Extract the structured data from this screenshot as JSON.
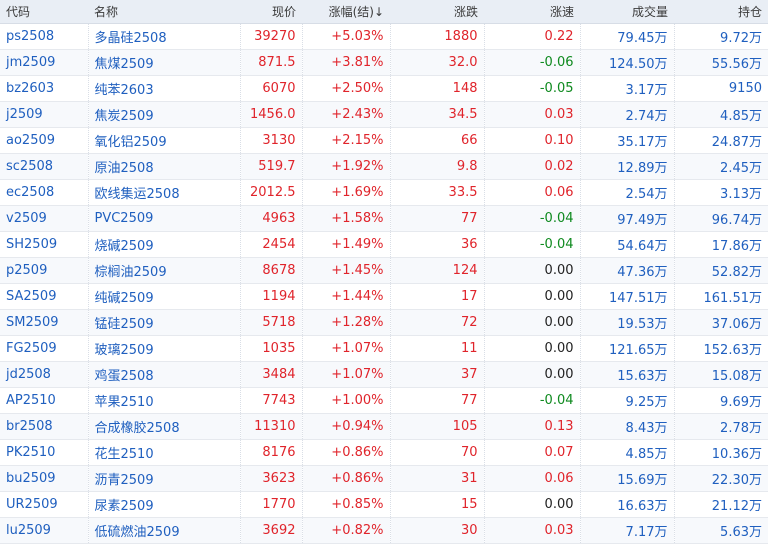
{
  "colors": {
    "up": "#e0242b",
    "down": "#0f8a1f",
    "flat": "#222222",
    "link": "#1f5fbf"
  },
  "header": [
    "代码",
    "名称",
    "现价",
    "涨幅(结)↓",
    "涨跌",
    "涨速",
    "成交量",
    "持仓"
  ],
  "rows": [
    {
      "code": "ps2508",
      "name": "多晶硅2508",
      "price": "39270",
      "pct": "+5.03%",
      "chg": "1880",
      "speed": "0.22",
      "speed_dir": "up",
      "vol": "79.45万",
      "oi": "9.72万"
    },
    {
      "code": "jm2509",
      "name": "焦煤2509",
      "price": "871.5",
      "pct": "+3.81%",
      "chg": "32.0",
      "speed": "-0.06",
      "speed_dir": "down",
      "vol": "124.50万",
      "oi": "55.56万"
    },
    {
      "code": "bz2603",
      "name": "纯苯2603",
      "price": "6070",
      "pct": "+2.50%",
      "chg": "148",
      "speed": "-0.05",
      "speed_dir": "down",
      "vol": "3.17万",
      "oi": "9150"
    },
    {
      "code": "j2509",
      "name": "焦炭2509",
      "price": "1456.0",
      "pct": "+2.43%",
      "chg": "34.5",
      "speed": "0.03",
      "speed_dir": "up",
      "vol": "2.74万",
      "oi": "4.85万"
    },
    {
      "code": "ao2509",
      "name": "氧化铝2509",
      "price": "3130",
      "pct": "+2.15%",
      "chg": "66",
      "speed": "0.10",
      "speed_dir": "up",
      "vol": "35.17万",
      "oi": "24.87万"
    },
    {
      "code": "sc2508",
      "name": "原油2508",
      "price": "519.7",
      "pct": "+1.92%",
      "chg": "9.8",
      "speed": "0.02",
      "speed_dir": "up",
      "vol": "12.89万",
      "oi": "2.45万"
    },
    {
      "code": "ec2508",
      "name": "欧线集运2508",
      "price": "2012.5",
      "pct": "+1.69%",
      "chg": "33.5",
      "speed": "0.06",
      "speed_dir": "up",
      "vol": "2.54万",
      "oi": "3.13万"
    },
    {
      "code": "v2509",
      "name": "PVC2509",
      "price": "4963",
      "pct": "+1.58%",
      "chg": "77",
      "speed": "-0.04",
      "speed_dir": "down",
      "vol": "97.49万",
      "oi": "96.74万"
    },
    {
      "code": "SH2509",
      "name": "烧碱2509",
      "price": "2454",
      "pct": "+1.49%",
      "chg": "36",
      "speed": "-0.04",
      "speed_dir": "down",
      "vol": "54.64万",
      "oi": "17.86万"
    },
    {
      "code": "p2509",
      "name": "棕榈油2509",
      "price": "8678",
      "pct": "+1.45%",
      "chg": "124",
      "speed": "0.00",
      "speed_dir": "flat",
      "vol": "47.36万",
      "oi": "52.82万"
    },
    {
      "code": "SA2509",
      "name": "纯碱2509",
      "price": "1194",
      "pct": "+1.44%",
      "chg": "17",
      "speed": "0.00",
      "speed_dir": "flat",
      "vol": "147.51万",
      "oi": "161.51万"
    },
    {
      "code": "SM2509",
      "name": "锰硅2509",
      "price": "5718",
      "pct": "+1.28%",
      "chg": "72",
      "speed": "0.00",
      "speed_dir": "flat",
      "vol": "19.53万",
      "oi": "37.06万"
    },
    {
      "code": "FG2509",
      "name": "玻璃2509",
      "price": "1035",
      "pct": "+1.07%",
      "chg": "11",
      "speed": "0.00",
      "speed_dir": "flat",
      "vol": "121.65万",
      "oi": "152.63万"
    },
    {
      "code": "jd2508",
      "name": "鸡蛋2508",
      "price": "3484",
      "pct": "+1.07%",
      "chg": "37",
      "speed": "0.00",
      "speed_dir": "flat",
      "vol": "15.63万",
      "oi": "15.08万"
    },
    {
      "code": "AP2510",
      "name": "苹果2510",
      "price": "7743",
      "pct": "+1.00%",
      "chg": "77",
      "speed": "-0.04",
      "speed_dir": "down",
      "vol": "9.25万",
      "oi": "9.69万"
    },
    {
      "code": "br2508",
      "name": "合成橡胶2508",
      "price": "11310",
      "pct": "+0.94%",
      "chg": "105",
      "speed": "0.13",
      "speed_dir": "up",
      "vol": "8.43万",
      "oi": "2.78万"
    },
    {
      "code": "PK2510",
      "name": "花生2510",
      "price": "8176",
      "pct": "+0.86%",
      "chg": "70",
      "speed": "0.07",
      "speed_dir": "up",
      "vol": "4.85万",
      "oi": "10.36万"
    },
    {
      "code": "bu2509",
      "name": "沥青2509",
      "price": "3623",
      "pct": "+0.86%",
      "chg": "31",
      "speed": "0.06",
      "speed_dir": "up",
      "vol": "15.69万",
      "oi": "22.30万"
    },
    {
      "code": "UR2509",
      "name": "尿素2509",
      "price": "1770",
      "pct": "+0.85%",
      "chg": "15",
      "speed": "0.00",
      "speed_dir": "flat",
      "vol": "16.63万",
      "oi": "21.12万"
    },
    {
      "code": "lu2509",
      "name": "低硫燃油2509",
      "price": "3692",
      "pct": "+0.82%",
      "chg": "30",
      "speed": "0.03",
      "speed_dir": "up",
      "vol": "7.17万",
      "oi": "5.63万"
    }
  ]
}
